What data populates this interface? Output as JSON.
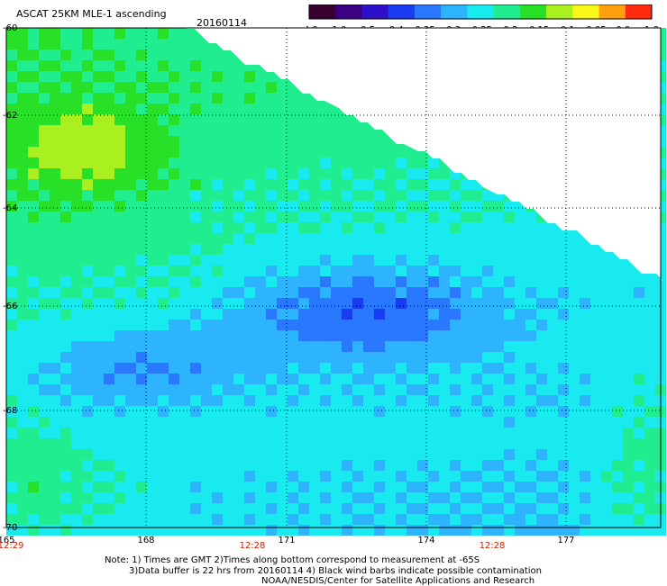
{
  "header": {
    "title": "ASCAT 25KM MLE-1 ascending",
    "date": "20160114"
  },
  "colorbar": {
    "tick_labels": [
      "-3.0",
      "-1.0",
      "-0.5",
      "-0.4",
      "-0.35",
      "-0.3",
      "-0.25",
      "-0.2",
      "-0.15",
      "-0.1",
      "-0.05",
      "0.0",
      "1.0"
    ],
    "colors": [
      "#3a0030",
      "#3b0080",
      "#2e10c8",
      "#1a3cf0",
      "#2a78ff",
      "#2eb4ff",
      "#19eaf0",
      "#20ec90",
      "#28e028",
      "#aaf020",
      "#f8f818",
      "#ffa010",
      "#ff2a10"
    ]
  },
  "map": {
    "lat_labels": [
      "-60",
      "-62",
      "-64",
      "-66",
      "-68",
      "-70"
    ],
    "lon_labels": [
      "165",
      "168",
      "171",
      "174",
      "177"
    ],
    "time_labels": [
      "12:29",
      "12:28",
      "12:28"
    ],
    "time_color": "#cc2200"
  },
  "footer": {
    "line1": "Note: 1) Times are GMT 2)Times along bottom correspond to measurement at -65S",
    "line2": "3)Data buffer is 22 hrs from 20160114 4) Black wind barbs indicate possible contamination",
    "line3": "NOAA/NESDIS/Center for Satellite Applications and Research"
  }
}
